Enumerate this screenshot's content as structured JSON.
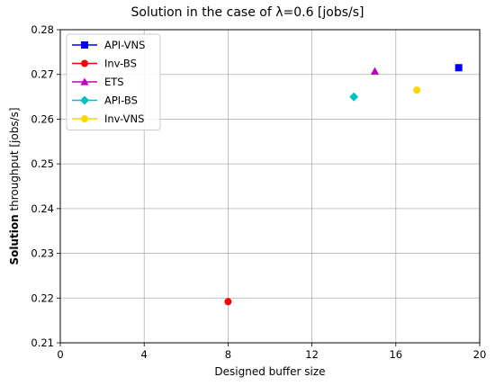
{
  "chart_data": {
    "type": "scatter",
    "title": "Solution in the case of λ=0.6 [jobs/s]",
    "xlabel": "Designed buffer size",
    "ylabel_bold": "Solution",
    "ylabel_rest": " throughput [jobs/s]",
    "xlim": [
      0,
      20
    ],
    "ylim": [
      0.21,
      0.28
    ],
    "xticks": [
      0,
      4,
      8,
      12,
      16,
      20
    ],
    "yticks": [
      0.21,
      0.22,
      0.23,
      0.24,
      0.25,
      0.26,
      0.27,
      0.28
    ],
    "grid": true,
    "legend_position": "top-left",
    "series": [
      {
        "name": "API-VNS",
        "marker": "square",
        "color": "#0000ff",
        "x": 19,
        "y": 0.2715
      },
      {
        "name": "Inv-BS",
        "marker": "circle",
        "color": "#ff0000",
        "x": 8,
        "y": 0.2192
      },
      {
        "name": "ETS",
        "marker": "triangle",
        "color": "#bf00bf",
        "x": 15,
        "y": 0.2707
      },
      {
        "name": "API-BS",
        "marker": "diamond",
        "color": "#00bfbf",
        "x": 14,
        "y": 0.265
      },
      {
        "name": "Inv-VNS",
        "marker": "circle",
        "color": "#ffd700",
        "x": 17,
        "y": 0.2665
      }
    ]
  }
}
